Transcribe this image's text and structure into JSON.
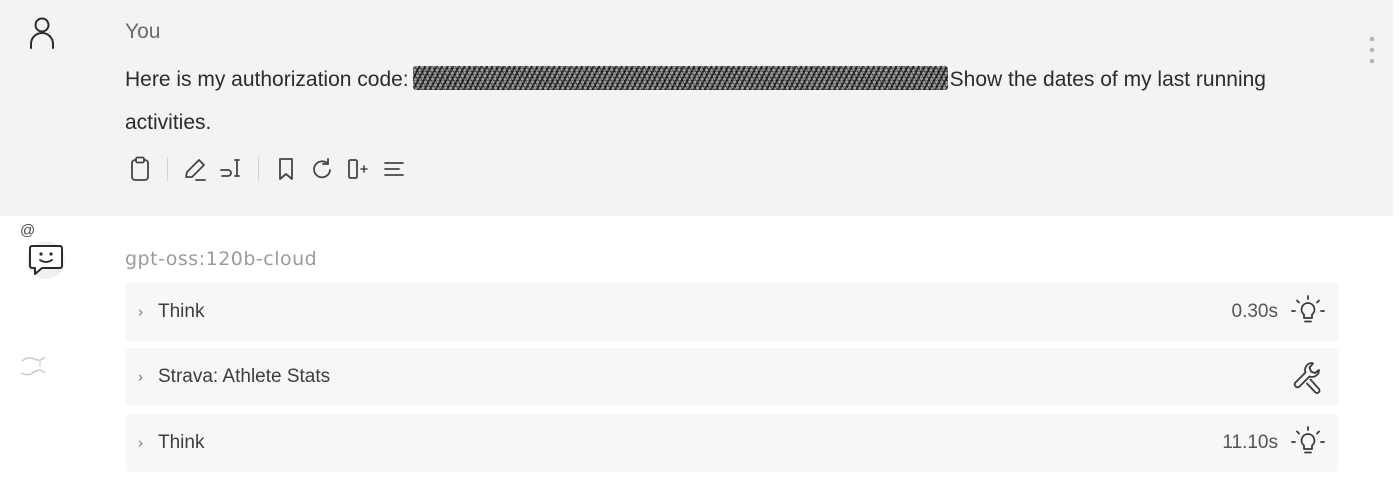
{
  "user_message": {
    "author": "You",
    "text_before": "Here is my authorization code:",
    "text_after": "Show the dates of my last running activities.",
    "toolbar_icons": [
      "clipboard-icon",
      "edit-icon",
      "input-icon",
      "bookmark-icon",
      "regenerate-icon",
      "split-icon",
      "menu-lines-icon"
    ]
  },
  "assistant": {
    "mention_marker": "@",
    "model_name": "gpt-oss:120b-cloud",
    "steps": [
      {
        "label": "Think",
        "duration": "0.30s",
        "icon": "lightbulb-icon"
      },
      {
        "label": "Strava: Athlete Stats",
        "duration": "",
        "icon": "wrench-icon"
      },
      {
        "label": "Think",
        "duration": "11.10s",
        "icon": "lightbulb-icon"
      }
    ]
  }
}
